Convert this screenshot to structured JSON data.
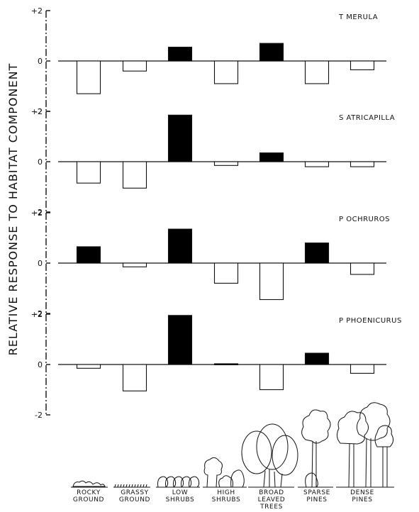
{
  "chart_data": {
    "type": "bar",
    "ylabel": "RELATIVE  RESPONSE  TO HABITAT COMPONENT",
    "ylim": [
      -2,
      2
    ],
    "y_ticks": [
      "+2",
      "0",
      "-2"
    ],
    "categories": [
      [
        "ROCKY",
        "GROUND"
      ],
      [
        "GRASSY",
        "GROUND"
      ],
      [
        "LOW",
        "SHRUBS"
      ],
      [
        "HIGH",
        "SHRUBS"
      ],
      [
        "BROAD",
        "LEAVED",
        "TREES"
      ],
      [
        "SPARSE",
        "PINES"
      ],
      [
        "DENSE",
        "PINES"
      ]
    ],
    "fill_rule": "positive values drawn as solid black bars, negative values as open bars",
    "colors": {
      "bar_positive": "#000000",
      "bar_negative": "#ffffff",
      "outline": "#111111"
    },
    "panels": [
      {
        "label": "T MERULA",
        "values": [
          -1.3,
          -0.4,
          0.55,
          -0.9,
          0.7,
          -0.9,
          -0.35
        ]
      },
      {
        "label": "S ATRICAPILLA",
        "values": [
          -0.85,
          -1.05,
          1.85,
          -0.15,
          0.35,
          -0.2,
          -0.2
        ]
      },
      {
        "label": "P OCHRUROS",
        "values": [
          0.65,
          -0.15,
          1.35,
          -0.8,
          -1.45,
          0.8,
          -0.45
        ]
      },
      {
        "label": "P PHOENICURUS",
        "values": [
          -0.15,
          -1.05,
          1.95,
          0.03,
          -1.0,
          0.45,
          -0.35
        ]
      }
    ]
  }
}
